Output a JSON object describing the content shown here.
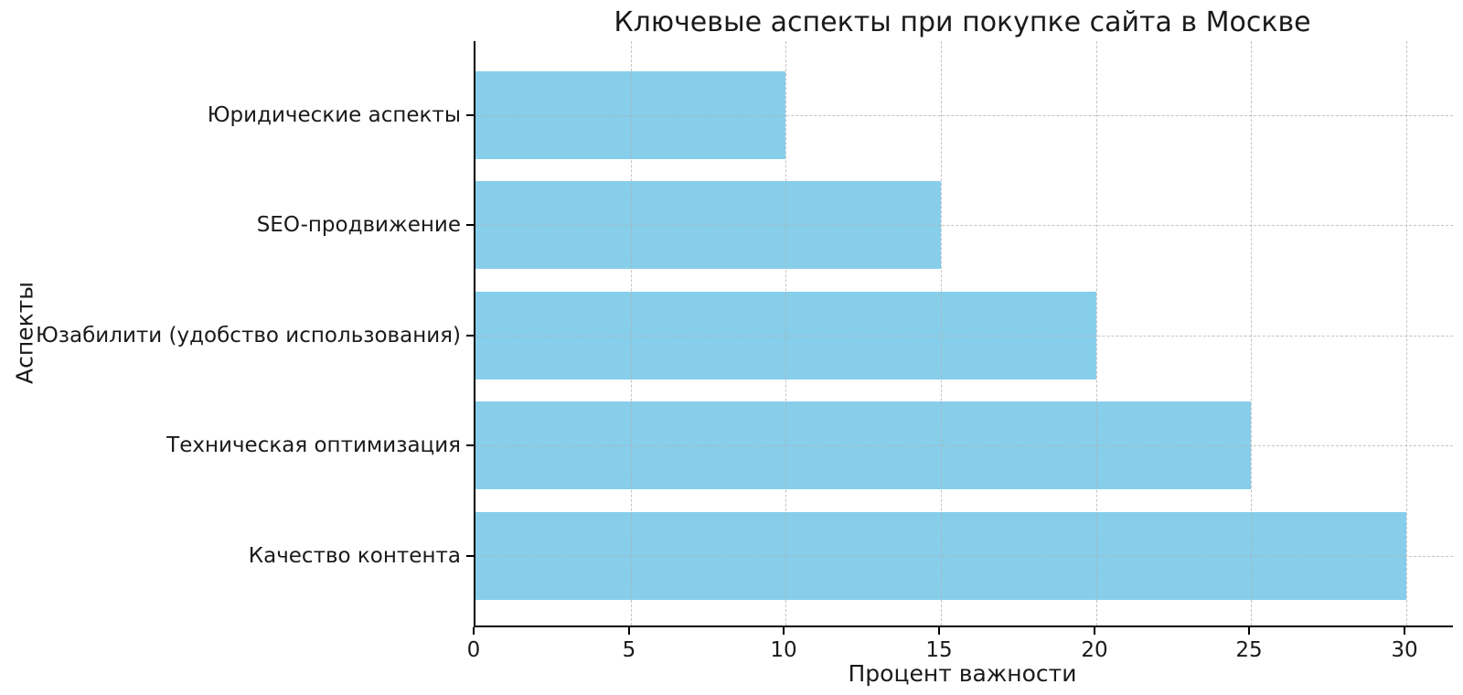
{
  "chart_data": {
    "type": "bar",
    "orientation": "horizontal",
    "title": "Ключевые аспекты при покупке сайта в Москве",
    "xlabel": "Процент важности",
    "ylabel": "Аспекты",
    "categories": [
      "Юридические аспекты",
      "SEO-продвижение",
      "Юзабилити (удобство использования)",
      "Техническая оптимизация",
      "Качество контента"
    ],
    "values": [
      10,
      15,
      20,
      25,
      30
    ],
    "xticks": [
      0,
      5,
      10,
      15,
      20,
      25,
      30
    ],
    "xlim": [
      0,
      31.5
    ],
    "bar_color": "#87CEEB",
    "grid": true,
    "grid_style": "dashed",
    "legend": "none"
  }
}
